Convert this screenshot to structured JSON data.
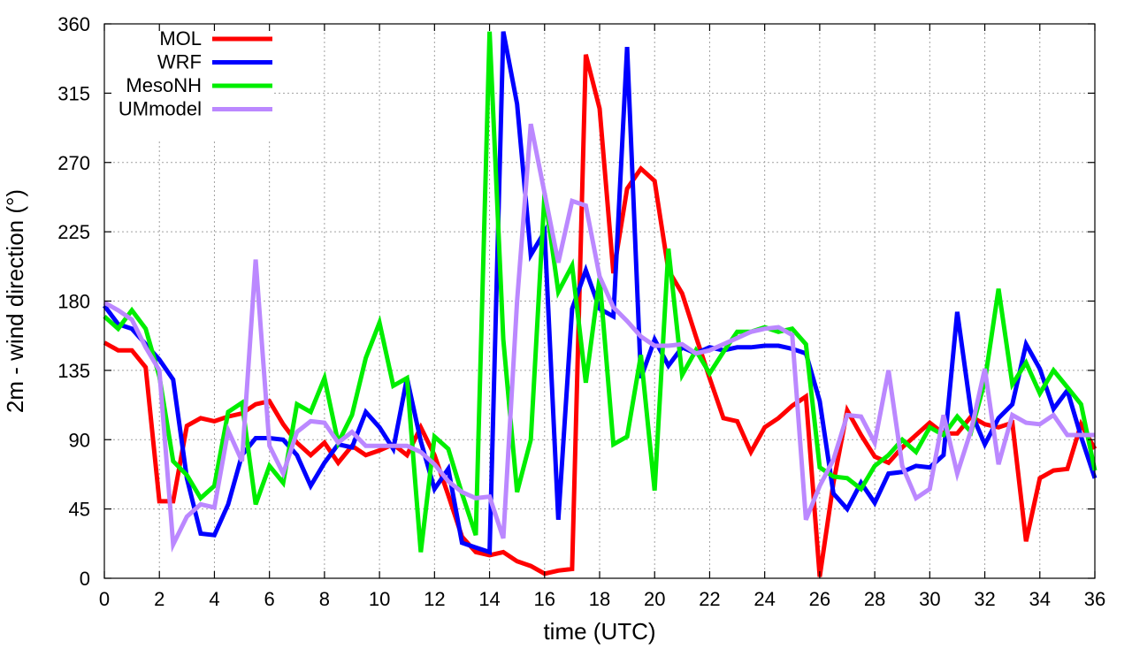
{
  "chart_data": {
    "type": "line",
    "title": "",
    "xlabel": "time (UTC)",
    "ylabel": "2m - wind direction (°)",
    "xlim": [
      0,
      36
    ],
    "ylim": [
      0,
      360
    ],
    "xticks": [
      0,
      2,
      4,
      6,
      8,
      10,
      12,
      14,
      16,
      18,
      20,
      22,
      24,
      26,
      28,
      30,
      32,
      34,
      36
    ],
    "yticks": [
      0,
      45,
      90,
      135,
      180,
      225,
      270,
      315,
      360
    ],
    "grid": true,
    "legend_position": "top-left",
    "series": [
      {
        "name": "MOL",
        "color": "#ff0000",
        "x": [
          0,
          0.5,
          1,
          1.5,
          2,
          2.5,
          3,
          3.5,
          4,
          4.5,
          5,
          5.5,
          6,
          6.5,
          7,
          7.5,
          8,
          8.5,
          9,
          9.5,
          10,
          10.5,
          11,
          11.5,
          12,
          12.5,
          13,
          13.5,
          14,
          14.5,
          15,
          15.5,
          16,
          16.5,
          17,
          17.5,
          18,
          18.5,
          19,
          19.5,
          20,
          20.5,
          21,
          21.5,
          22,
          22.5,
          23,
          23.5,
          24,
          24.5,
          25,
          25.5,
          26,
          26.5,
          27,
          27.5,
          28,
          28.5,
          29,
          29.5,
          30,
          30.5,
          31,
          31.5,
          32,
          32.5,
          33,
          33.5,
          34,
          34.5,
          35,
          35.5,
          36
        ],
        "values": [
          153,
          148,
          148,
          137,
          50,
          50,
          99,
          104,
          102,
          105,
          107,
          113,
          115,
          100,
          88,
          80,
          88,
          75,
          86,
          80,
          83,
          87,
          80,
          98,
          80,
          54,
          27,
          17,
          15,
          17,
          11,
          8,
          3,
          5,
          6,
          340,
          305,
          198,
          253,
          266,
          258,
          200,
          185,
          157,
          130,
          104,
          102,
          82,
          98,
          104,
          112,
          118,
          1,
          62,
          109,
          93,
          79,
          75,
          85,
          93,
          101,
          94,
          94,
          105,
          100,
          98,
          101,
          24,
          65,
          70,
          71,
          100,
          84
        ]
      },
      {
        "name": "WRF",
        "color": "#0000ff",
        "x": [
          0,
          0.5,
          1,
          1.5,
          2,
          2.5,
          3,
          3.5,
          4,
          4.5,
          5,
          5.5,
          6,
          6.5,
          7,
          7.5,
          8,
          8.5,
          9,
          9.5,
          10,
          10.5,
          11,
          11.5,
          12,
          12.5,
          13,
          13.5,
          14,
          14.5,
          15,
          15.5,
          16,
          16.5,
          17,
          17.5,
          18,
          18.5,
          19,
          19.5,
          20,
          20.5,
          21,
          21.5,
          22,
          22.5,
          23,
          23.5,
          24,
          24.5,
          25,
          25.5,
          26,
          26.5,
          27,
          27.5,
          28,
          28.5,
          29,
          29.5,
          30,
          30.5,
          31,
          31.5,
          32,
          32.5,
          33,
          33.5,
          34,
          34.5,
          35,
          35.5,
          36
        ],
        "values": [
          177,
          165,
          162,
          152,
          142,
          129,
          65,
          29,
          28,
          48,
          80,
          91,
          91,
          90,
          80,
          60,
          75,
          87,
          85,
          108,
          98,
          84,
          130,
          89,
          58,
          71,
          23,
          20,
          17,
          355,
          308,
          210,
          225,
          38,
          175,
          200,
          175,
          170,
          345,
          130,
          155,
          138,
          150,
          146,
          150,
          148,
          150,
          150,
          151,
          151,
          149,
          146,
          115,
          55,
          45,
          62,
          49,
          68,
          69,
          73,
          72,
          80,
          173,
          108,
          87,
          104,
          113,
          152,
          136,
          110,
          122,
          92,
          65
        ]
      },
      {
        "name": "MesoNH",
        "color": "#00ee00",
        "x": [
          0,
          0.5,
          1,
          1.5,
          2,
          2.5,
          3,
          3.5,
          4,
          4.5,
          5,
          5.5,
          6,
          6.5,
          7,
          7.5,
          8,
          8.5,
          9,
          9.5,
          10,
          10.5,
          11,
          11.5,
          12,
          12.5,
          13,
          13.5,
          14,
          14.5,
          15,
          15.5,
          16,
          16.5,
          17,
          17.5,
          18,
          18.5,
          19,
          19.5,
          20,
          20.5,
          21,
          21.5,
          22,
          22.5,
          23,
          23.5,
          24,
          24.5,
          25,
          25.5,
          26,
          26.5,
          27,
          27.5,
          28,
          28.5,
          29,
          29.5,
          30,
          30.5,
          31,
          31.5,
          32,
          32.5,
          33,
          33.5,
          34,
          34.5,
          35,
          35.5,
          36
        ],
        "values": [
          170,
          162,
          174,
          162,
          131,
          76,
          67,
          52,
          60,
          108,
          114,
          48,
          73,
          62,
          113,
          108,
          130,
          88,
          106,
          143,
          166,
          125,
          130,
          17,
          92,
          84,
          55,
          28,
          355,
          155,
          56,
          90,
          250,
          186,
          203,
          127,
          195,
          87,
          92,
          145,
          57,
          214,
          132,
          148,
          133,
          147,
          160,
          160,
          163,
          160,
          162,
          152,
          72,
          66,
          65,
          58,
          73,
          80,
          90,
          82,
          98,
          93,
          105,
          95,
          128,
          188,
          126,
          140,
          120,
          135,
          124,
          113,
          70
        ]
      },
      {
        "name": "UMmodel",
        "color": "#bb88ff",
        "x": [
          0,
          0.5,
          1,
          1.5,
          2,
          2.5,
          3,
          3.5,
          4,
          4.5,
          5,
          5.5,
          6,
          6.5,
          7,
          7.5,
          8,
          8.5,
          9,
          9.5,
          10,
          10.5,
          11,
          11.5,
          12,
          12.5,
          13,
          13.5,
          14,
          14.5,
          15,
          15.5,
          16,
          16.5,
          17,
          17.5,
          18,
          18.5,
          19,
          19.5,
          20,
          20.5,
          21,
          21.5,
          22,
          22.5,
          23,
          23.5,
          24,
          24.5,
          25,
          25.5,
          26,
          26.5,
          27,
          27.5,
          28,
          28.5,
          29,
          29.5,
          30,
          30.5,
          31,
          31.5,
          32,
          32.5,
          33,
          33.5,
          34,
          34.5,
          35,
          35.5,
          36
        ],
        "values": [
          179,
          174,
          168,
          150,
          135,
          22,
          40,
          48,
          46,
          96,
          76,
          207,
          86,
          68,
          95,
          102,
          101,
          88,
          95,
          86,
          86,
          86,
          86,
          82,
          74,
          63,
          56,
          52,
          53,
          26,
          180,
          295,
          250,
          205,
          245,
          242,
          196,
          176,
          167,
          157,
          151,
          151,
          152,
          146,
          148,
          152,
          156,
          160,
          162,
          163,
          158,
          38,
          60,
          77,
          106,
          105,
          88,
          135,
          73,
          52,
          58,
          106,
          68,
          96,
          136,
          74,
          106,
          101,
          100,
          106,
          93,
          93,
          93
        ]
      }
    ]
  }
}
